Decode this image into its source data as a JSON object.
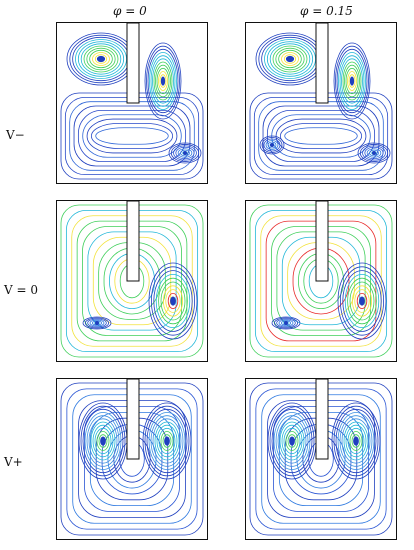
{
  "columns": [
    {
      "label": "φ = 0"
    },
    {
      "label": "φ = 0.15"
    }
  ],
  "rows": [
    {
      "label": "V−"
    },
    {
      "label": "V = 0"
    },
    {
      "label": "V+"
    }
  ],
  "colors": {
    "low": "#1f3fbf",
    "mid": "#22b7d8",
    "green": "#3fcf5a",
    "high": "#e82a2a",
    "yellow": "#f2e23a",
    "baffle": "#ffffff",
    "frame": "#111111"
  },
  "panels": [
    {
      "row": 0,
      "col": 0,
      "pattern": "v-minus",
      "phi": "0"
    },
    {
      "row": 0,
      "col": 1,
      "pattern": "v-minus",
      "phi": "0.15"
    },
    {
      "row": 1,
      "col": 0,
      "pattern": "v-zero",
      "phi": "0"
    },
    {
      "row": 1,
      "col": 1,
      "pattern": "v-zero",
      "phi": "0.15"
    },
    {
      "row": 2,
      "col": 0,
      "pattern": "v-plus",
      "phi": "0"
    },
    {
      "row": 2,
      "col": 1,
      "pattern": "v-plus",
      "phi": "0.15"
    }
  ]
}
